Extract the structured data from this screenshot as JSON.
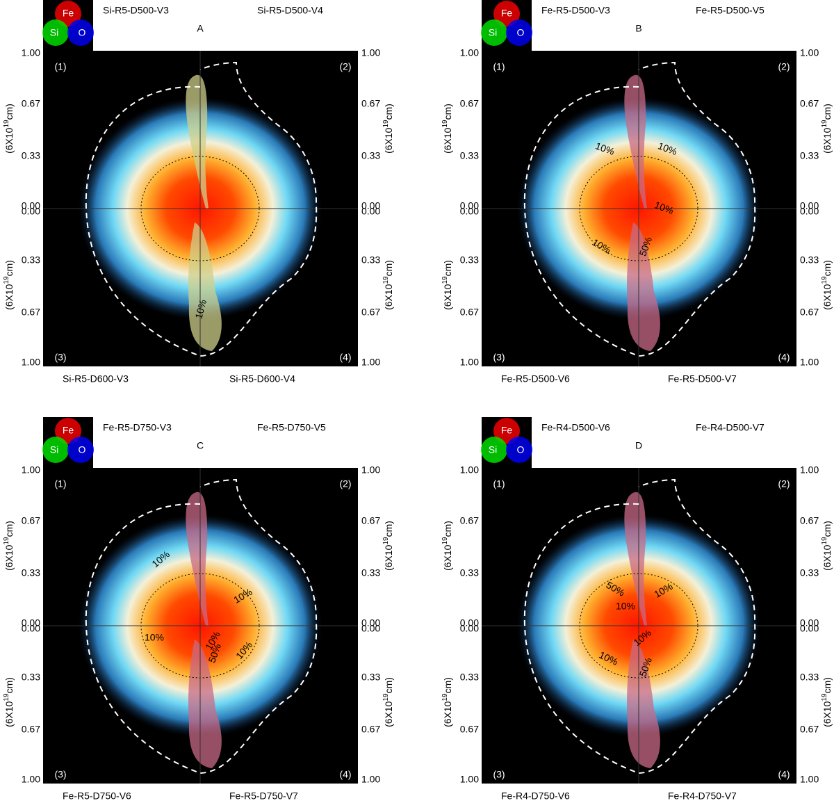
{
  "figure": {
    "axis": {
      "upper_ticks": [
        "1.00",
        "0.67",
        "0.33",
        "0.00"
      ],
      "lower_ticks": [
        "0.00",
        "0.33",
        "0.67",
        "1.00"
      ],
      "unit_prefix": "(6X10",
      "unit_exponent": "19",
      "unit_suffix": "cm)"
    },
    "quadrants": [
      "(1)",
      "(2)",
      "(3)",
      "(4)"
    ],
    "legend": [
      "Fe",
      "Si",
      "O"
    ],
    "panels": [
      {
        "letter": "A",
        "top_left": "Si-R5-D500-V3",
        "top_right": "Si-R5-D500-V4",
        "bottom_left": "Si-R5-D600-V3",
        "bottom_right": "Si-R5-D600-V4",
        "contour_labels": [
          "10%"
        ]
      },
      {
        "letter": "B",
        "top_left": "Fe-R5-D500-V3",
        "top_right": "Fe-R5-D500-V5",
        "bottom_left": "Fe-R5-D500-V6",
        "bottom_right": "Fe-R5-D500-V7",
        "contour_labels": [
          "10%",
          "10%",
          "10%",
          "10%",
          "50%"
        ]
      },
      {
        "letter": "C",
        "top_left": "Fe-R5-D750-V3",
        "top_right": "Fe-R5-D750-V5",
        "bottom_left": "Fe-R5-D750-V6",
        "bottom_right": "Fe-R5-D750-V7",
        "contour_labels": [
          "10%",
          "10%",
          "10%",
          "10%",
          "50%",
          "10%"
        ]
      },
      {
        "letter": "D",
        "top_left": "Fe-R4-D500-V6",
        "top_right": "Fe-R4-D500-V7",
        "bottom_left": "Fe-R4-D750-V6",
        "bottom_right": "Fe-R4-D750-V7",
        "contour_labels": [
          "50%",
          "10%",
          "10%",
          "10%",
          "10%",
          "50%"
        ]
      }
    ]
  }
}
